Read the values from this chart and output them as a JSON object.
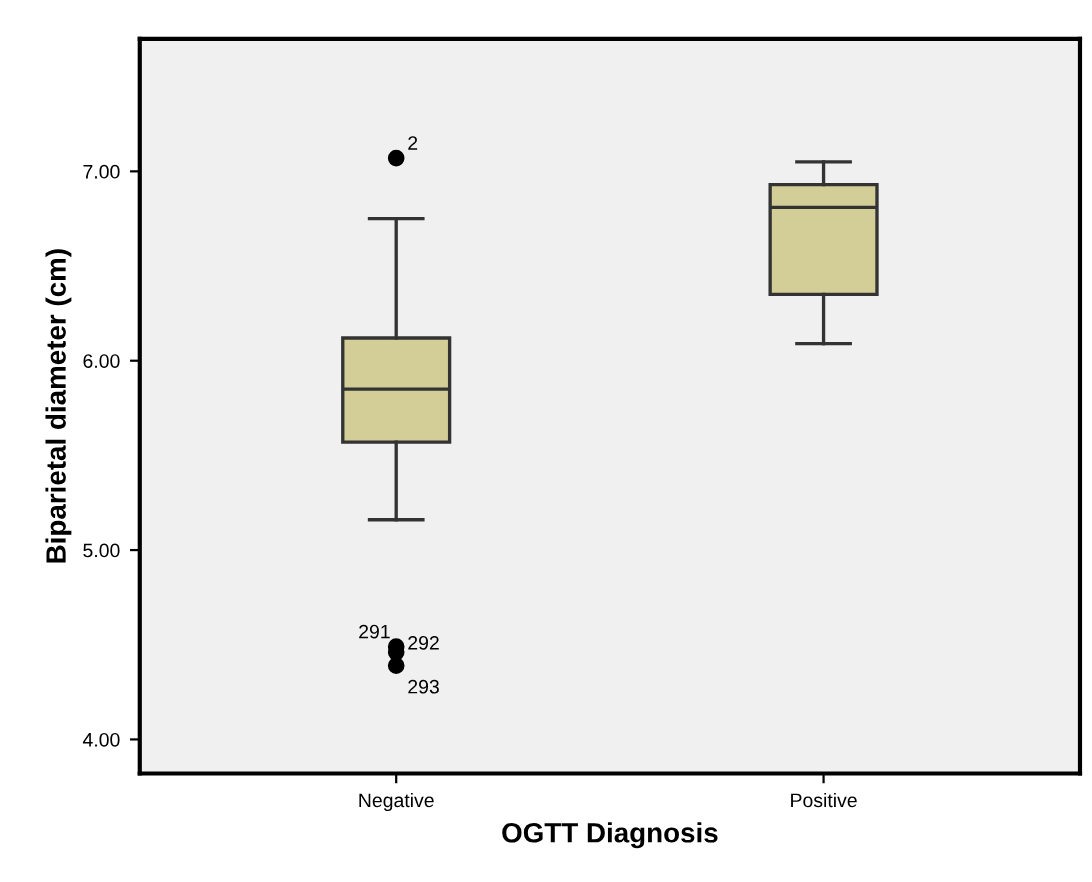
{
  "chart_data": {
    "type": "box",
    "xlabel": "OGTT Diagnosis",
    "ylabel": "Biparietal diameter (cm)",
    "categories": [
      "Negative",
      "Positive"
    ],
    "boxes": [
      {
        "low": 5.16,
        "q1": 5.57,
        "median": 5.85,
        "q3": 6.12,
        "high": 6.75,
        "outliers": [
          7.07,
          4.49,
          4.46,
          4.39
        ]
      },
      {
        "low": 6.09,
        "q1": 6.35,
        "median": 6.81,
        "q3": 6.93,
        "high": 7.05
      }
    ],
    "color": "#d3ce97",
    "ylim": [
      3.82,
      7.7
    ],
    "yticks": [
      {
        "value": 4,
        "label": "4.00"
      },
      {
        "value": 5,
        "label": "5.00"
      },
      {
        "value": 6,
        "label": "6.00"
      },
      {
        "value": 7,
        "label": "7.00"
      }
    ],
    "grid": false,
    "annotations": [
      "2",
      "291",
      "292",
      "293"
    ]
  }
}
